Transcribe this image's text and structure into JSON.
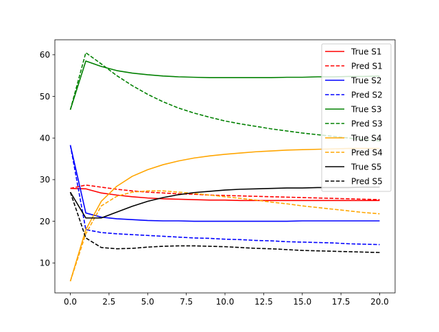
{
  "chart_data": {
    "type": "line",
    "title": "",
    "xlabel": "",
    "ylabel": "",
    "xlim": [
      -1.0,
      21.0
    ],
    "ylim": [
      2.8,
      63.6
    ],
    "xticks": [
      0.0,
      2.5,
      5.0,
      7.5,
      10.0,
      12.5,
      15.0,
      17.5,
      20.0
    ],
    "xtick_labels": [
      "0.0",
      "2.5",
      "5.0",
      "7.5",
      "10.0",
      "12.5",
      "15.0",
      "17.5",
      "20.0"
    ],
    "yticks": [
      10,
      20,
      30,
      40,
      50,
      60
    ],
    "ytick_labels": [
      "10",
      "20",
      "30",
      "40",
      "50",
      "60"
    ],
    "grid": false,
    "legend_position": "top-right",
    "x": [
      0,
      1,
      2,
      3,
      4,
      5,
      6,
      7,
      8,
      9,
      10,
      11,
      12,
      13,
      14,
      15,
      16,
      17,
      18,
      19,
      20
    ],
    "series": [
      {
        "name": "True S1",
        "color": "#ff0000",
        "style": "solid",
        "values": [
          27.9,
          27.8,
          26.8,
          26.3,
          25.9,
          25.6,
          25.4,
          25.3,
          25.2,
          25.1,
          25.1,
          25.0,
          25.0,
          25.0,
          25.0,
          25.0,
          25.0,
          25.0,
          25.0,
          25.0,
          25.0
        ]
      },
      {
        "name": "Pred S1",
        "color": "#ff0000",
        "style": "dashed",
        "values": [
          27.9,
          28.7,
          28.2,
          27.7,
          27.3,
          27.0,
          26.8,
          26.6,
          26.5,
          26.3,
          26.2,
          26.1,
          26.0,
          25.9,
          25.8,
          25.7,
          25.6,
          25.5,
          25.4,
          25.3,
          25.2
        ]
      },
      {
        "name": "True S2",
        "color": "#0000ff",
        "style": "solid",
        "values": [
          38.3,
          22.0,
          21.0,
          20.6,
          20.4,
          20.2,
          20.1,
          20.1,
          20.0,
          20.0,
          20.0,
          20.0,
          20.0,
          20.0,
          20.0,
          20.1,
          20.1,
          20.1,
          20.1,
          20.1,
          20.1
        ]
      },
      {
        "name": "Pred S2",
        "color": "#0000ff",
        "style": "dashed",
        "values": [
          38.3,
          18.0,
          17.3,
          17.0,
          16.8,
          16.6,
          16.4,
          16.2,
          16.0,
          15.9,
          15.7,
          15.6,
          15.4,
          15.3,
          15.1,
          15.0,
          14.9,
          14.8,
          14.6,
          14.5,
          14.4
        ]
      },
      {
        "name": "True S3",
        "color": "#008000",
        "style": "solid",
        "values": [
          46.8,
          58.5,
          57.2,
          56.2,
          55.6,
          55.2,
          54.9,
          54.7,
          54.6,
          54.5,
          54.5,
          54.5,
          54.5,
          54.5,
          54.6,
          54.6,
          54.7,
          54.7,
          54.8,
          54.8,
          54.9
        ]
      },
      {
        "name": "Pred S3",
        "color": "#008000",
        "style": "dashed",
        "values": [
          46.8,
          60.5,
          57.8,
          55.0,
          52.6,
          50.5,
          48.7,
          47.2,
          46.0,
          45.0,
          44.1,
          43.4,
          42.8,
          42.2,
          41.7,
          41.2,
          40.8,
          40.4,
          40.0,
          39.6,
          39.3
        ]
      },
      {
        "name": "True S4",
        "color": "#ffa500",
        "style": "solid",
        "values": [
          5.6,
          18.0,
          24.8,
          28.4,
          30.8,
          32.4,
          33.6,
          34.5,
          35.2,
          35.7,
          36.1,
          36.4,
          36.7,
          36.9,
          37.1,
          37.2,
          37.3,
          37.4,
          37.5,
          37.5,
          37.5
        ]
      },
      {
        "name": "Pred S4",
        "color": "#ffa500",
        "style": "dashed",
        "values": [
          5.6,
          17.0,
          23.7,
          26.0,
          27.0,
          27.3,
          27.3,
          27.0,
          26.7,
          26.3,
          25.9,
          25.5,
          25.1,
          24.6,
          24.2,
          23.7,
          23.3,
          22.9,
          22.5,
          22.1,
          21.8
        ]
      },
      {
        "name": "True S5",
        "color": "#000000",
        "style": "solid",
        "values": [
          27.0,
          20.8,
          20.8,
          22.2,
          23.6,
          24.8,
          25.7,
          26.4,
          26.9,
          27.2,
          27.5,
          27.7,
          27.8,
          27.9,
          28.0,
          28.0,
          28.1,
          28.1,
          28.1,
          28.2,
          28.2
        ]
      },
      {
        "name": "Pred S5",
        "color": "#000000",
        "style": "dashed",
        "values": [
          27.0,
          16.0,
          13.7,
          13.4,
          13.5,
          13.8,
          14.0,
          14.1,
          14.1,
          14.0,
          13.9,
          13.7,
          13.5,
          13.4,
          13.2,
          13.0,
          12.9,
          12.8,
          12.7,
          12.6,
          12.5
        ]
      }
    ]
  }
}
